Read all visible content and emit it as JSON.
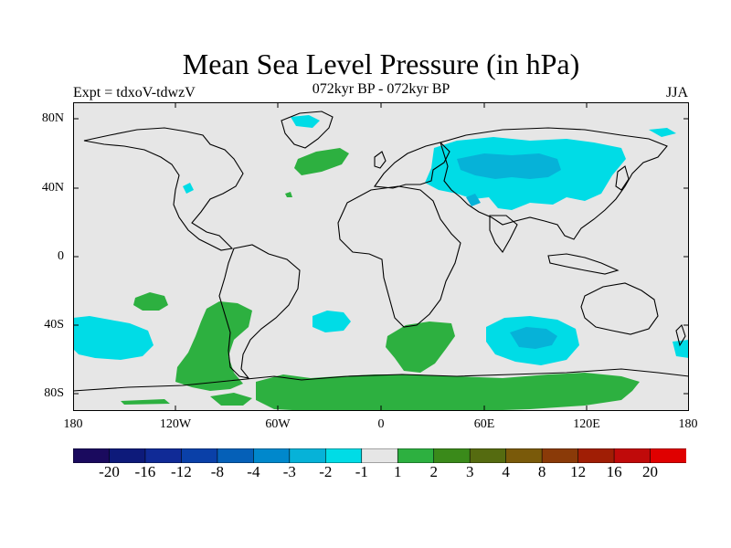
{
  "title": "Mean Sea Level Pressure (in hPa)",
  "subtitle_left": "Expt = tdxoV-tdwzV",
  "subtitle_center": "072kyr BP - 072kyr BP",
  "subtitle_right": "JJA",
  "y_axis_labels": [
    "80N",
    "40N",
    "0",
    "40S",
    "80S"
  ],
  "x_axis_labels": [
    "180",
    "120W",
    "60W",
    "0",
    "60E",
    "120E",
    "180"
  ],
  "colorbar": {
    "labels": [
      "-20",
      "-16",
      "-12",
      "-8",
      "-4",
      "-3",
      "-2",
      "-1",
      "1",
      "2",
      "3",
      "4",
      "8",
      "12",
      "16",
      "20"
    ],
    "colors": [
      "#1a0a5e",
      "#0d1a7a",
      "#102a96",
      "#0a40a8",
      "#0560b8",
      "#0088cc",
      "#06b2d8",
      "#00dce6",
      "#e6e6e6",
      "#2db040",
      "#3a8a1a",
      "#556b10",
      "#7a5a0a",
      "#8a3a08",
      "#a01e05",
      "#c00a0a",
      "#e00000"
    ]
  },
  "map_colors": {
    "background": "#e6e6e6",
    "light_negative": "#00dce6",
    "medium_negative": "#06b2d8",
    "light_positive": "#2db040"
  }
}
